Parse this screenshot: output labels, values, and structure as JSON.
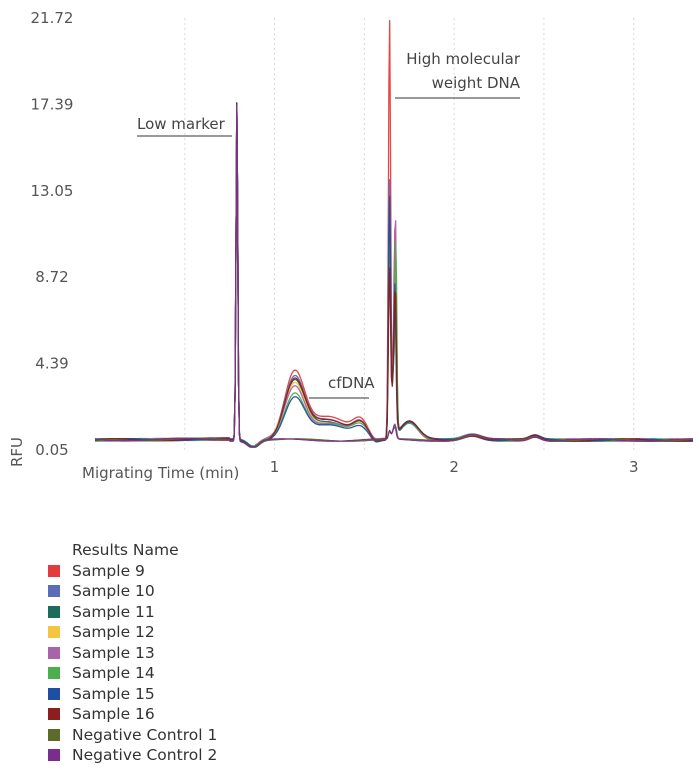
{
  "chart_data": {
    "type": "line",
    "title": "",
    "xlabel": "Migrating Time (min)",
    "ylabel": "RFU",
    "xlim": [
      0,
      3.33
    ],
    "ylim": [
      0.05,
      21.72
    ],
    "x_ticks": [
      "1",
      "2",
      "3"
    ],
    "y_ticks": [
      "21.72",
      "17.39",
      "13.05",
      "8.72",
      "4.39",
      "0.05"
    ],
    "grid": "vertical dotted",
    "annotations": [
      {
        "text": "Low marker",
        "x": 0.79,
        "y": 17.1
      },
      {
        "text": "cfDNA",
        "x": 1.45,
        "y": 2.9
      },
      {
        "text": "High molecular",
        "x": 1.7,
        "y": 19.6
      },
      {
        "text": "weight DNA",
        "x": 1.7,
        "y": 18.1
      }
    ],
    "legend_title": "Results Name",
    "legend_position": "bottom-left",
    "peaks": {
      "low_marker_x": 0.79,
      "high_mw_x": 1.64,
      "cfdna_x": 1.11
    },
    "series": [
      {
        "name": "Sample 9",
        "color": "#e33b3b",
        "cfdna_peak": 3.2,
        "high_mw_peak": 21.2,
        "second_peak": 7.2
      },
      {
        "name": "Sample 10",
        "color": "#5b6cb8",
        "cfdna_peak": 2.9,
        "high_mw_peak": 13.0,
        "second_peak": 6.0
      },
      {
        "name": "Sample 11",
        "color": "#1d6b5a",
        "cfdna_peak": 2.7,
        "high_mw_peak": 11.5,
        "second_peak": 5.5
      },
      {
        "name": "Sample 12",
        "color": "#f5c542",
        "cfdna_peak": 2.6,
        "high_mw_peak": 9.0,
        "second_peak": 5.2
      },
      {
        "name": "Sample 13",
        "color": "#a864a8",
        "cfdna_peak": 2.5,
        "high_mw_peak": 11.0,
        "second_peak": 8.9
      },
      {
        "name": "Sample 14",
        "color": "#4cae4c",
        "cfdna_peak": 2.2,
        "high_mw_peak": 10.0,
        "second_peak": 7.8
      },
      {
        "name": "Sample 15",
        "color": "#1f4fa0",
        "cfdna_peak": 2.0,
        "high_mw_peak": 12.2,
        "second_peak": 4.5
      },
      {
        "name": "Sample 16",
        "color": "#8b1e1e",
        "cfdna_peak": 2.8,
        "high_mw_peak": 8.5,
        "second_peak": 5.0
      },
      {
        "name": "Negative Control 1",
        "color": "#5a6b2a",
        "cfdna_peak": 0.3,
        "high_mw_peak": 0.4,
        "second_peak": 0.3
      },
      {
        "name": "Negative Control 2",
        "color": "#7b2d8e",
        "cfdna_peak": 0.3,
        "high_mw_peak": 0.4,
        "second_peak": 0.3
      }
    ]
  }
}
